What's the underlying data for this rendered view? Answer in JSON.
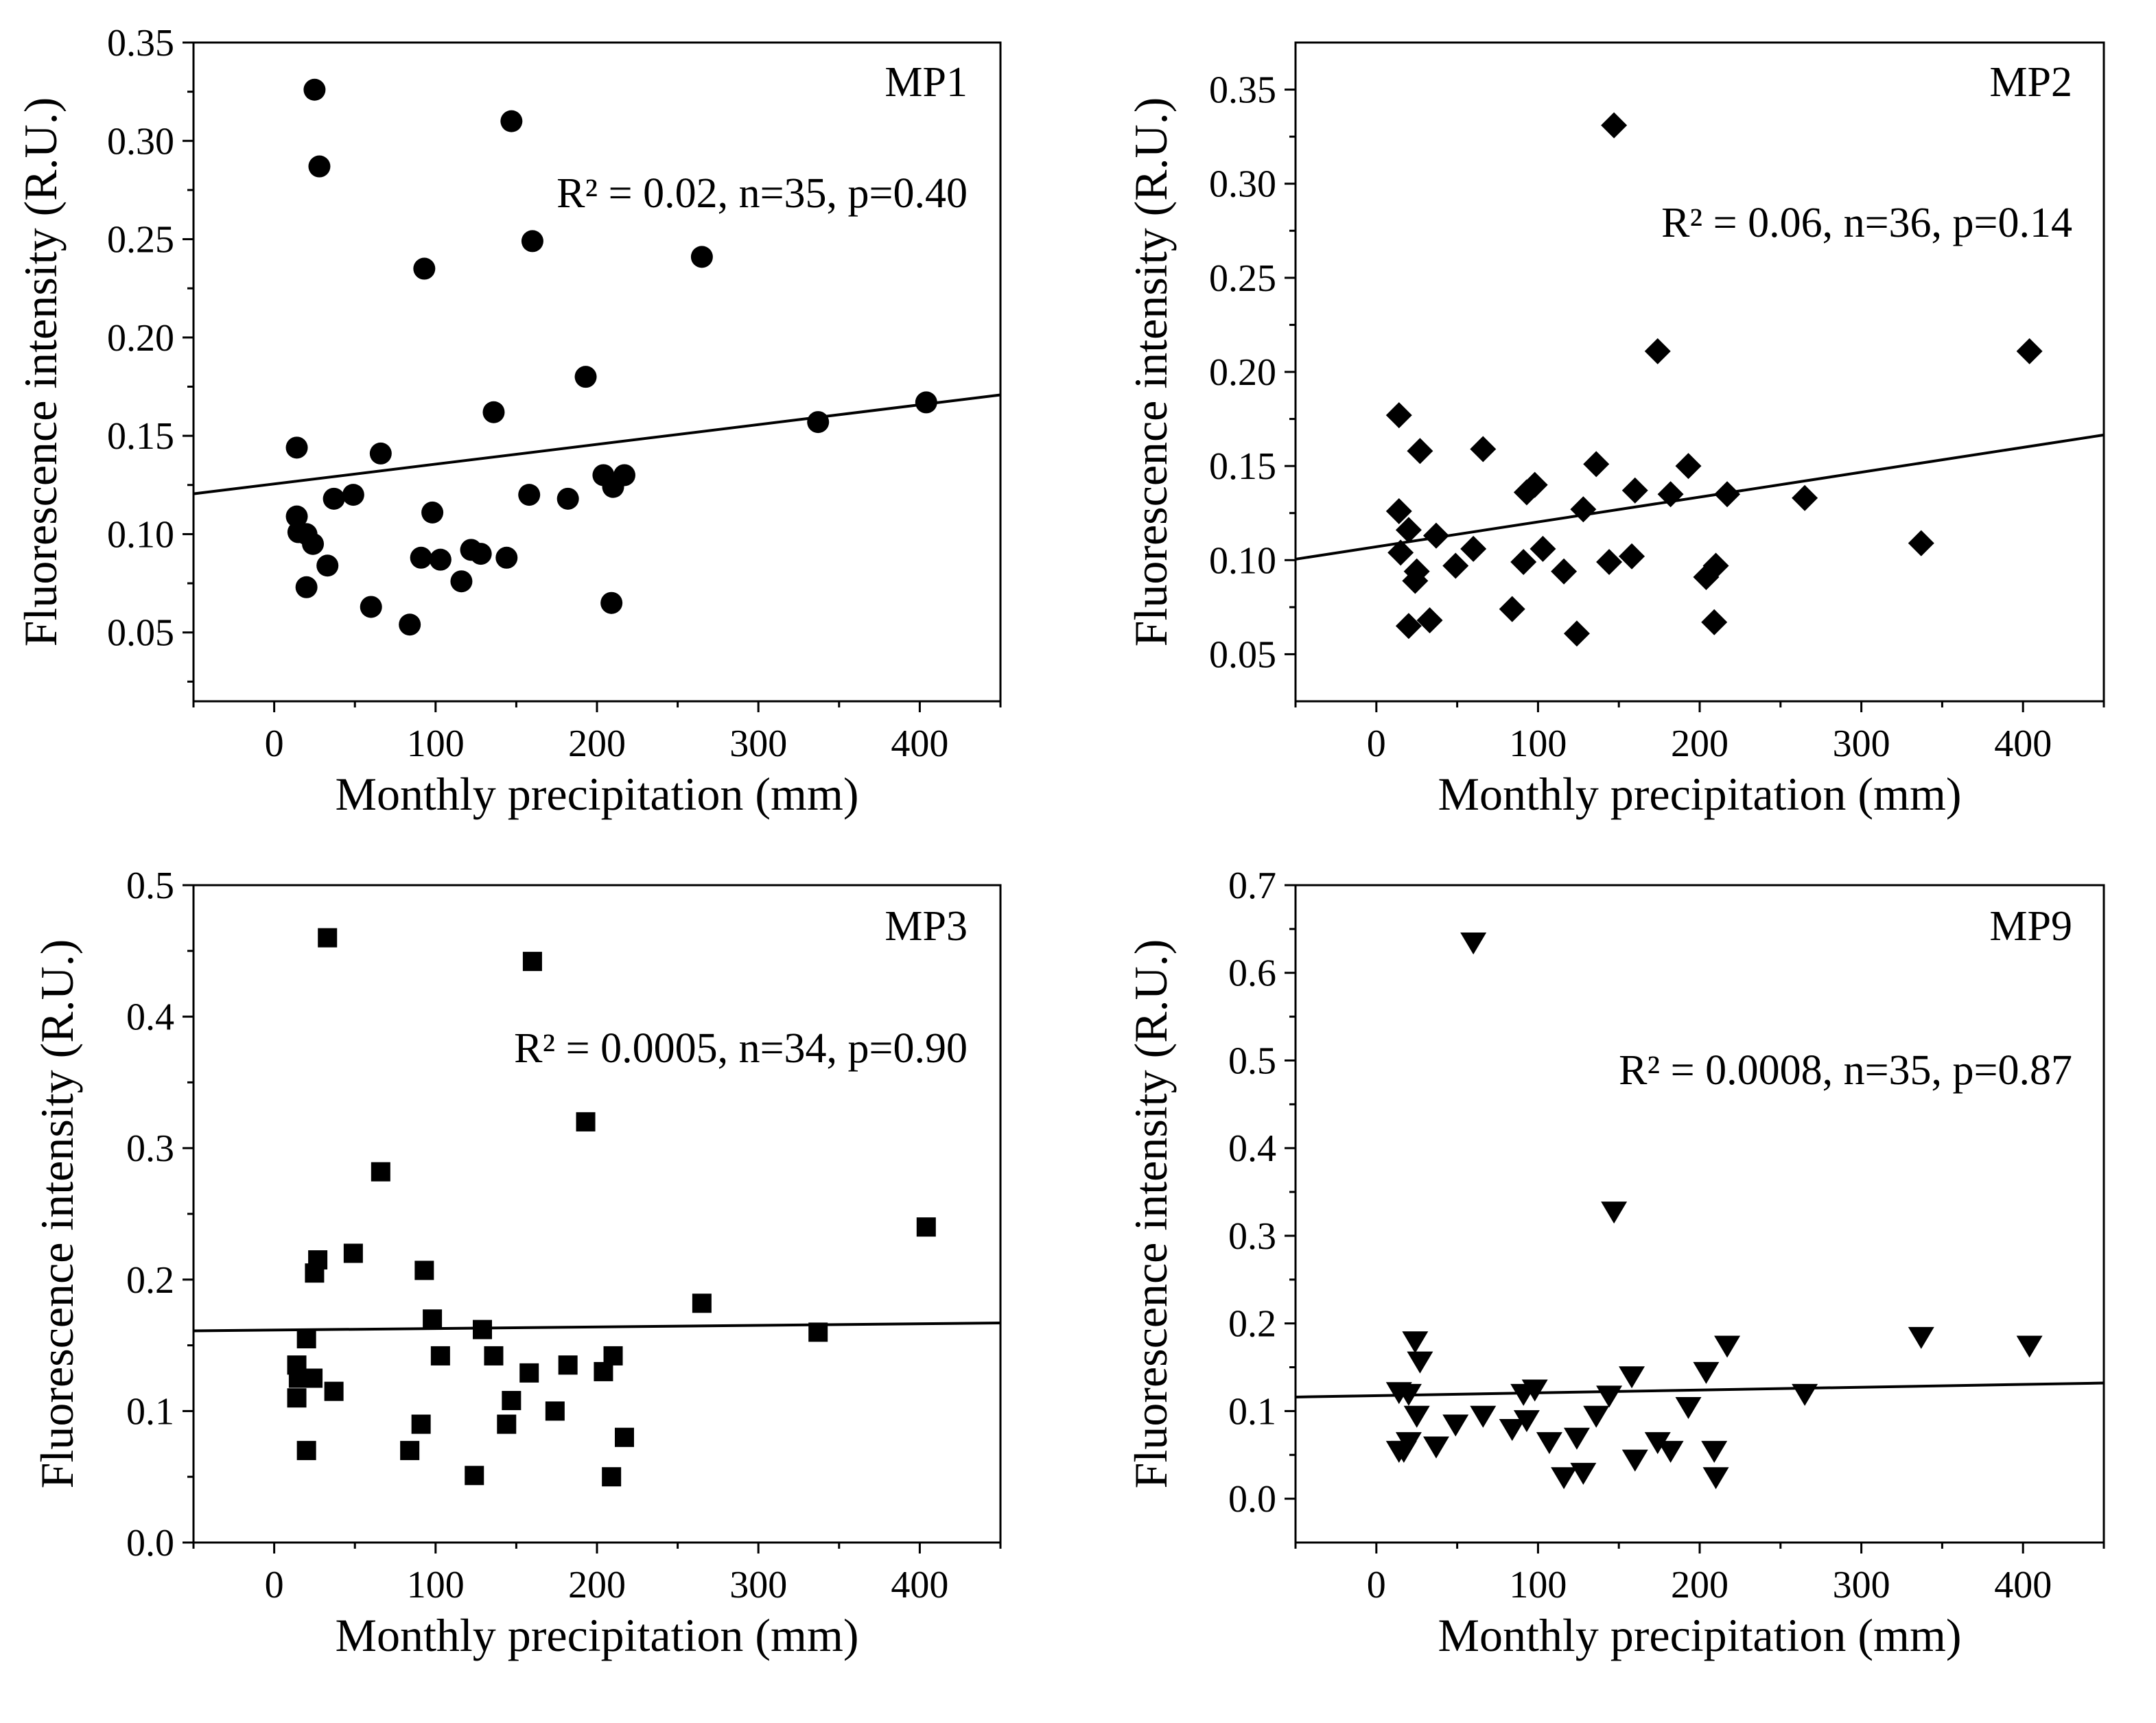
{
  "figure": {
    "marker_color": "#000000",
    "line_color": "#000000",
    "background": "#ffffff"
  },
  "chart_data": [
    {
      "type": "scatter",
      "title": "MP1",
      "annotation": "R² = 0.02, n=35, p=0.40",
      "xlabel": "Monthly precipitation (mm)",
      "ylabel": "Fluorescence intensity (R.U.)",
      "xlim": [
        -50,
        450
      ],
      "ylim": [
        0.015,
        0.35
      ],
      "xticks": [
        0,
        100,
        200,
        300,
        400
      ],
      "xtick_labels": [
        "0",
        "100",
        "200",
        "300",
        "400"
      ],
      "yticks": [
        0.05,
        0.1,
        0.15,
        0.2,
        0.25,
        0.3,
        0.35
      ],
      "ytick_labels": [
        "0.05",
        "0.10",
        "0.15",
        "0.20",
        "0.25",
        "0.30",
        "0.35"
      ],
      "marker": "circle",
      "grid": false,
      "regression_line": {
        "x": [
          -50,
          450
        ],
        "y": [
          0.1205,
          0.1708
        ]
      },
      "x": [
        14,
        14,
        15,
        20,
        20,
        24,
        25,
        28,
        33,
        37,
        49,
        60,
        66,
        84,
        91,
        93,
        98,
        103,
        116,
        122,
        128,
        136,
        144,
        147,
        158,
        160,
        182,
        193,
        204,
        209,
        210,
        217,
        265,
        337,
        404
      ],
      "y": [
        0.144,
        0.109,
        0.101,
        0.073,
        0.1,
        0.095,
        0.326,
        0.287,
        0.084,
        0.118,
        0.12,
        0.063,
        0.141,
        0.054,
        0.088,
        0.235,
        0.111,
        0.087,
        0.076,
        0.092,
        0.09,
        0.162,
        0.088,
        0.31,
        0.12,
        0.249,
        0.118,
        0.18,
        0.13,
        0.065,
        0.124,
        0.13,
        0.241,
        0.157,
        0.167
      ]
    },
    {
      "type": "scatter",
      "title": "MP2",
      "annotation": "R² = 0.06, n=36, p=0.14",
      "xlabel": "Monthly precipitation (mm)",
      "ylabel": "Fluorescence intensity (R.U.)",
      "xlim": [
        -50,
        450
      ],
      "ylim": [
        0.025,
        0.375
      ],
      "xticks": [
        0,
        100,
        200,
        300,
        400
      ],
      "xtick_labels": [
        "0",
        "100",
        "200",
        "300",
        "400"
      ],
      "yticks": [
        0.05,
        0.1,
        0.15,
        0.2,
        0.25,
        0.3,
        0.35
      ],
      "ytick_labels": [
        "0.05",
        "0.10",
        "0.15",
        "0.20",
        "0.25",
        "0.30",
        "0.35"
      ],
      "marker": "diamond",
      "grid": false,
      "regression_line": {
        "x": [
          -50,
          450
        ],
        "y": [
          0.1005,
          0.1665
        ]
      },
      "x": [
        14,
        14,
        15,
        20,
        20,
        24,
        25,
        27,
        33,
        37,
        49,
        60,
        66,
        84,
        91,
        93,
        98,
        103,
        116,
        124,
        128,
        136,
        144,
        147,
        158,
        160,
        174,
        182,
        193,
        204,
        209,
        210,
        217,
        265,
        337,
        404
      ],
      "y": [
        0.177,
        0.126,
        0.104,
        0.065,
        0.116,
        0.089,
        0.094,
        0.158,
        0.068,
        0.113,
        0.097,
        0.106,
        0.159,
        0.074,
        0.099,
        0.136,
        0.14,
        0.106,
        0.094,
        0.061,
        0.127,
        0.151,
        0.099,
        0.331,
        0.102,
        0.137,
        0.211,
        0.135,
        0.15,
        0.091,
        0.067,
        0.097,
        0.135,
        0.133,
        0.109,
        0.211
      ]
    },
    {
      "type": "scatter",
      "title": "MP3",
      "annotation": "R² = 0.0005, n=34, p=0.90",
      "xlabel": "Monthly precipitation (mm)",
      "ylabel": "Fluorescence intensity (R.U.)",
      "xlim": [
        -50,
        450
      ],
      "ylim": [
        0,
        0.5
      ],
      "xticks": [
        0,
        100,
        200,
        300,
        400
      ],
      "xtick_labels": [
        "0",
        "100",
        "200",
        "300",
        "400"
      ],
      "yticks": [
        0.0,
        0.1,
        0.2,
        0.3,
        0.4,
        0.5
      ],
      "ytick_labels": [
        "0.0",
        "0.1",
        "0.2",
        "0.3",
        "0.4",
        "0.5"
      ],
      "marker": "square",
      "grid": false,
      "regression_line": {
        "x": [
          -50,
          450
        ],
        "y": [
          0.161,
          0.167
        ]
      },
      "x": [
        14,
        14,
        15,
        20,
        20,
        24,
        25,
        27,
        33,
        37,
        49,
        66,
        84,
        91,
        93,
        98,
        103,
        124,
        129,
        136,
        144,
        147,
        158,
        160,
        174,
        182,
        193,
        204,
        209,
        210,
        217,
        265,
        337,
        404
      ],
      "y": [
        0.135,
        0.11,
        0.125,
        0.155,
        0.07,
        0.125,
        0.205,
        0.215,
        0.46,
        0.115,
        0.22,
        0.282,
        0.07,
        0.09,
        0.207,
        0.17,
        0.142,
        0.051,
        0.162,
        0.142,
        0.09,
        0.108,
        0.129,
        0.442,
        0.1,
        0.135,
        0.32,
        0.13,
        0.05,
        0.142,
        0.08,
        0.182,
        0.16,
        0.24
      ]
    },
    {
      "type": "scatter",
      "title": "MP9",
      "annotation": "R² = 0.0008, n=35, p=0.87",
      "xlabel": "Monthly precipitation (mm)",
      "ylabel": "Fluorescence intensity (R.U.)",
      "xlim": [
        -50,
        450
      ],
      "ylim": [
        -0.05,
        0.7
      ],
      "xticks": [
        0,
        100,
        200,
        300,
        400
      ],
      "xtick_labels": [
        "0",
        "100",
        "200",
        "300",
        "400"
      ],
      "yticks": [
        0.0,
        0.1,
        0.2,
        0.3,
        0.4,
        0.5,
        0.6,
        0.7
      ],
      "ytick_labels": [
        "0.0",
        "0.1",
        "0.2",
        "0.3",
        "0.4",
        "0.5",
        "0.6",
        "0.7"
      ],
      "marker": "triangle-down",
      "grid": false,
      "regression_line": {
        "x": [
          -50,
          450
        ],
        "y": [
          0.116,
          0.132
        ]
      },
      "x": [
        14,
        14,
        17,
        20,
        24,
        25,
        27,
        37,
        49,
        60,
        66,
        84,
        91,
        93,
        98,
        107,
        116,
        124,
        128,
        136,
        144,
        147,
        158,
        160,
        174,
        182,
        193,
        204,
        209,
        210,
        217,
        265,
        337,
        404,
        20
      ],
      "y": [
        0.122,
        0.055,
        0.055,
        0.065,
        0.18,
        0.095,
        0.157,
        0.06,
        0.085,
        0.635,
        0.095,
        0.08,
        0.12,
        0.09,
        0.125,
        0.065,
        0.025,
        0.07,
        0.03,
        0.095,
        0.118,
        0.328,
        0.14,
        0.045,
        0.065,
        0.055,
        0.105,
        0.145,
        0.055,
        0.025,
        0.175,
        0.12,
        0.185,
        0.175,
        0.12
      ]
    }
  ]
}
